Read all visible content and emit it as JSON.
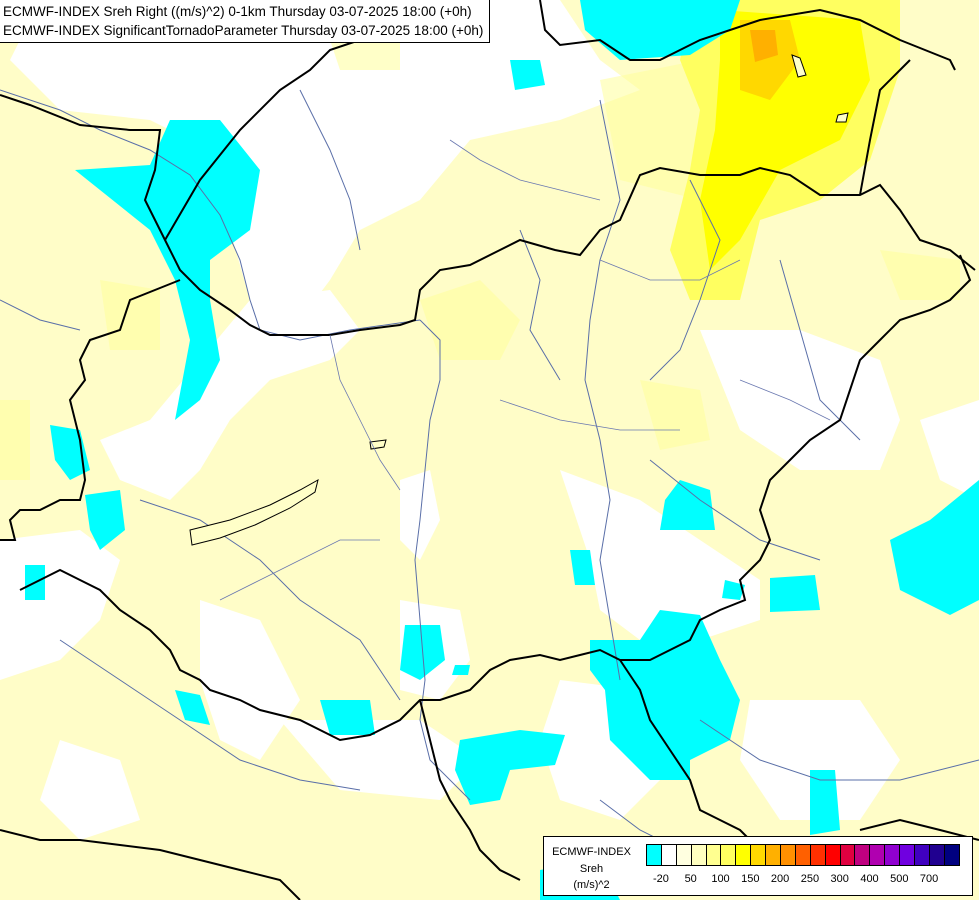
{
  "header": {
    "line1": "ECMWF-INDEX Sreh Right ((m/s)^2) 0-1km Thursday 03-07-2025 18:00 (+0h)",
    "line2": "ECMWF-INDEX SignificantTornadoParameter Thursday 03-07-2025 18:00 (+0h)"
  },
  "legend": {
    "model": "ECMWF-INDEX",
    "variable": "Sreh",
    "unit": "(m/s)^2",
    "tick_labels": [
      "-20",
      "50",
      "100",
      "150",
      "200",
      "250",
      "300",
      "400",
      "500",
      "700"
    ],
    "colors": [
      "#00ffff",
      "#ffffff",
      "#ffffe0",
      "#ffffc0",
      "#ffff90",
      "#ffff60",
      "#ffff00",
      "#ffd800",
      "#ffb000",
      "#ff9000",
      "#ff6000",
      "#ff3000",
      "#ff0000",
      "#e00040",
      "#c00080",
      "#b000b0",
      "#9000d0",
      "#7000e0",
      "#4000c0",
      "#200090",
      "#000080"
    ]
  },
  "map": {
    "colors": {
      "low": "#00ffff",
      "neutral": "#ffffff",
      "pale": "#ffffc8",
      "light": "#ffff9a",
      "yellow": "#ffff00",
      "orange": "#ffc000",
      "border": "#000000",
      "river": "#5a6fa8"
    }
  }
}
